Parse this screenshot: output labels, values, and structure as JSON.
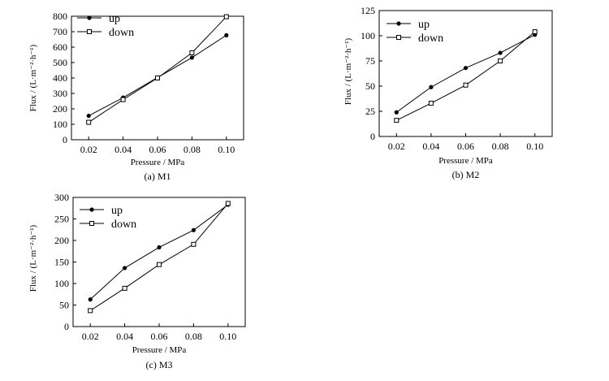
{
  "chart_data": [
    {
      "id": "m1",
      "type": "line",
      "caption": "(a) M1",
      "xlabel": "Pressure / MPa",
      "ylabel": "Flux / (L·m⁻²·h⁻¹)",
      "x": [
        0.02,
        0.04,
        0.06,
        0.08,
        0.1
      ],
      "x_tick_labels": [
        "0.02",
        "0.04",
        "0.06",
        "0.08",
        "0.10"
      ],
      "y_ticks": [
        0,
        100,
        200,
        300,
        400,
        500,
        600,
        700,
        800
      ],
      "xlim": [
        0.01,
        0.11
      ],
      "ylim": [
        0,
        800
      ],
      "legend_position": "top-left",
      "series": [
        {
          "name": "up",
          "marker": "filled-circle",
          "values": [
            155,
            273,
            403,
            532,
            677
          ]
        },
        {
          "name": "down",
          "marker": "open-square",
          "values": [
            113,
            260,
            400,
            563,
            797
          ]
        }
      ]
    },
    {
      "id": "m2",
      "type": "line",
      "caption": "(b) M2",
      "xlabel": "Pressure / MPa",
      "ylabel": "Flux / (L·m⁻²·h⁻¹)",
      "x": [
        0.02,
        0.04,
        0.06,
        0.08,
        0.1
      ],
      "x_tick_labels": [
        "0.02",
        "0.04",
        "0.06",
        "0.08",
        "0.10"
      ],
      "y_ticks": [
        0,
        25,
        50,
        75,
        100,
        125
      ],
      "xlim": [
        0.01,
        0.11
      ],
      "ylim": [
        0,
        125
      ],
      "legend_position": "top-left",
      "series": [
        {
          "name": "up",
          "marker": "filled-circle",
          "values": [
            24,
            49,
            68,
            83,
            101
          ]
        },
        {
          "name": "down",
          "marker": "open-square",
          "values": [
            16,
            33,
            51,
            75,
            104
          ]
        }
      ]
    },
    {
      "id": "m3",
      "type": "line",
      "caption": "(c) M3",
      "xlabel": "Pressure / MPa",
      "ylabel": "Flux / (L·m⁻²·h⁻¹)",
      "x": [
        0.02,
        0.04,
        0.06,
        0.08,
        0.1
      ],
      "x_tick_labels": [
        "0.02",
        "0.04",
        "0.06",
        "0.08",
        "0.10"
      ],
      "y_ticks": [
        0,
        50,
        100,
        150,
        200,
        250,
        300
      ],
      "xlim": [
        0.01,
        0.11
      ],
      "ylim": [
        0,
        300
      ],
      "legend_position": "top-left",
      "series": [
        {
          "name": "up",
          "marker": "filled-circle",
          "values": [
            63,
            136,
            184,
            224,
            283
          ]
        },
        {
          "name": "down",
          "marker": "open-square",
          "values": [
            37,
            89,
            144,
            191,
            286
          ]
        }
      ]
    }
  ]
}
